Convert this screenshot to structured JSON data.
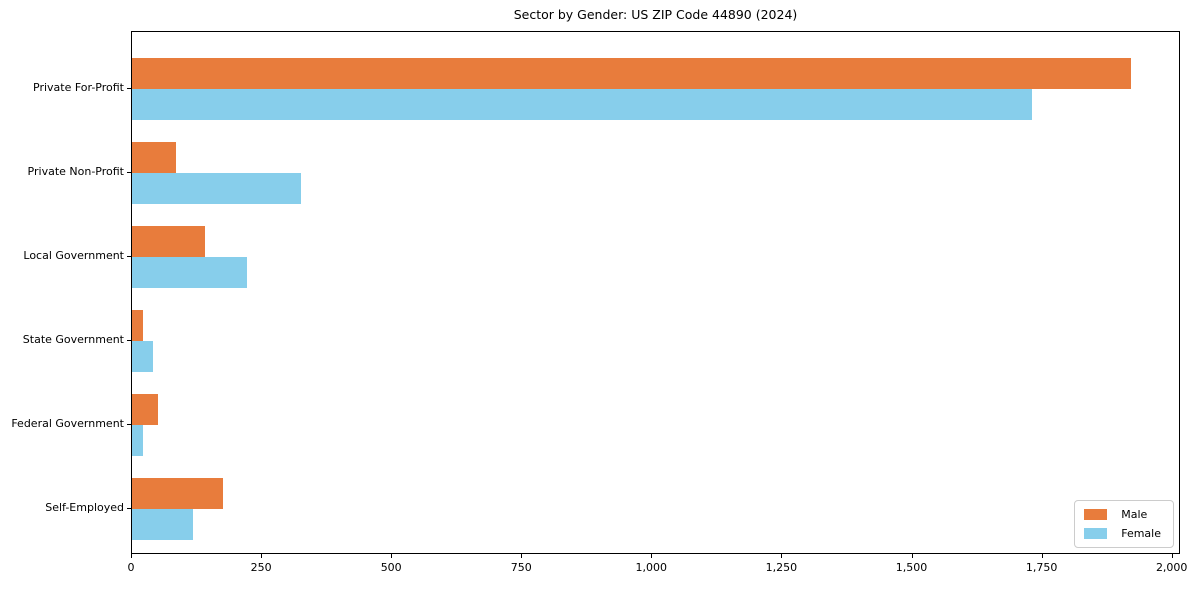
{
  "title": "Sector by Gender: US ZIP Code 44890 (2024)",
  "chart_data": {
    "type": "bar",
    "orientation": "horizontal",
    "title": "Sector by Gender: US ZIP Code 44890 (2024)",
    "categories": [
      "Private For-Profit",
      "Private Non-Profit",
      "Local Government",
      "State Government",
      "Federal Government",
      "Self-Employed"
    ],
    "series": [
      {
        "name": "Male",
        "color": "#E87C3C",
        "values": [
          1920,
          85,
          140,
          22,
          50,
          175
        ]
      },
      {
        "name": "Female",
        "color": "#87CEEB",
        "values": [
          1730,
          325,
          220,
          40,
          22,
          117
        ]
      }
    ],
    "xlabel": "",
    "ylabel": "",
    "xlim": [
      0,
      2016
    ],
    "xticks": [
      0,
      250,
      500,
      750,
      1000,
      1250,
      1500,
      1750,
      2000
    ],
    "xtick_labels": [
      "0",
      "250",
      "500",
      "750",
      "1,000",
      "1,250",
      "1,500",
      "1,750",
      "2,000"
    ],
    "grid": false,
    "legend": {
      "position": "lower right",
      "entries": [
        "Male",
        "Female"
      ]
    }
  },
  "colors": {
    "male": "#E87C3C",
    "female": "#87CEEB",
    "frame": "#000000",
    "text": "#000000",
    "legend_border": "#cccccc",
    "background": "#ffffff"
  }
}
